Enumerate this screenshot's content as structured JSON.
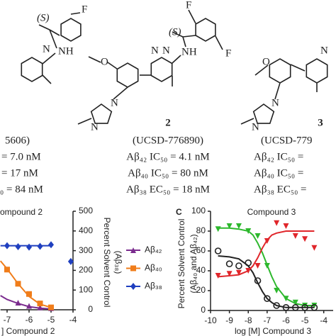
{
  "left_compound": {
    "labels": [
      "F",
      "(S)",
      "NH",
      "N"
    ],
    "code": "5606)",
    "lines": [
      "= 7.0 nM",
      "= 17 nM",
      "₀ = 84 nM"
    ]
  },
  "middle_compound": {
    "labels": [
      "F",
      "F",
      "(S)",
      "NH",
      "N",
      "N",
      "O",
      "N",
      "N"
    ],
    "number": "2",
    "code": "(UCSD-776890)",
    "lines": [
      "Aβ₄₂ IC₅₀ = 4.1 nM",
      "Aβ₄₀ IC₅₀ = 80 nM",
      "Aβ₃₈ EC₅₀ = 18 nM"
    ]
  },
  "right_compound": {
    "labels": [
      "N",
      "O",
      "N",
      "N"
    ],
    "number": "3",
    "code": "(UCSD-779",
    "lines": [
      "Aβ₄₂ IC₅₀ =",
      "Aβ₄₀ IC₅₀ =",
      "Aβ₃₈ EC₅₀ ="
    ]
  },
  "chart_data": [
    {
      "type": "scatter",
      "title": "ompound 2",
      "xlabel": "] Compound 2",
      "y2label": [
        "Percent Solvent Control",
        "(Aβ₃₈)"
      ],
      "xlim": [
        -7.3,
        -4
      ],
      "xticks": [
        -7,
        -6,
        -5,
        -4
      ],
      "ylim": [
        0,
        125
      ],
      "y2lim": [
        0,
        500
      ],
      "y2ticks": [
        0,
        100,
        200,
        300,
        400,
        500
      ],
      "legend": "outside-right",
      "series": [
        {
          "name": "Aβ₄₂",
          "color": "#7b2c8e",
          "marker": "triangle",
          "x": [
            -6.5,
            -6,
            -5.5,
            -5
          ],
          "values": [
            9,
            5,
            3,
            2
          ],
          "fit_x": [
            -7.3,
            -7,
            -6.5,
            -6,
            -5.5,
            -5
          ],
          "fit": [
            18,
            13,
            8,
            4,
            2,
            1
          ]
        },
        {
          "name": "Aβ₄₀",
          "color": "#f07d1a",
          "marker": "square",
          "x": [
            -7,
            -6.5,
            -6,
            -5.5,
            -5
          ],
          "values": [
            51,
            33,
            20,
            8,
            3
          ],
          "fit_x": [
            -7.3,
            -7,
            -6.5,
            -6,
            -5.5,
            -5
          ],
          "fit": [
            62,
            52,
            33,
            17,
            7,
            3
          ]
        },
        {
          "name": "Aβ₃₈",
          "color": "#1f3fbf",
          "marker": "diamond",
          "axis": "y2",
          "x": [
            -7,
            -6.5,
            -6,
            -5.5,
            -5,
            -4.1
          ],
          "values": [
            325,
            320,
            318,
            322,
            330,
            245
          ],
          "fit_x": [
            -7.3,
            -5
          ],
          "fit": [
            325,
            325
          ]
        }
      ]
    },
    {
      "type": "scatter",
      "panel": "C",
      "title": "Compound 3",
      "xlabel": "log [M] Compound 3",
      "ylabel": [
        "Percent Solvent Control",
        "(Aβ₄₀ and Aβ₄₂)"
      ],
      "xlim": [
        -10,
        -3.5
      ],
      "xticks": [
        -10,
        -9,
        -8,
        -7,
        -6,
        -5,
        -4
      ],
      "ylim": [
        0,
        100
      ],
      "yticks": [
        0,
        20,
        40,
        60,
        80,
        100
      ],
      "series": [
        {
          "color": "#2db82d",
          "marker": "triangle-down",
          "x": [
            -9.6,
            -9,
            -8.5,
            -8,
            -7.5,
            -7,
            -6.5,
            -6,
            -5.5,
            -5,
            -4.5
          ],
          "values": [
            82,
            85,
            85,
            80,
            75,
            45,
            20,
            12,
            8,
            5,
            5
          ],
          "fit_x": [
            -9.6,
            -9,
            -8.5,
            -8,
            -7.75,
            -7.5,
            -7.25,
            -7,
            -6.75,
            -6.5,
            -6,
            -5.5,
            -5,
            -4.5
          ],
          "fit": [
            83,
            83,
            82,
            80,
            76,
            68,
            58,
            46,
            34,
            24,
            12,
            7,
            5,
            5
          ]
        },
        {
          "color": "#222222",
          "marker": "circle",
          "x": [
            -9.6,
            -9,
            -8.5,
            -8,
            -7.5,
            -7,
            -6.5,
            -6,
            -5.5,
            -5,
            -4.5
          ],
          "values": [
            60,
            47,
            45,
            48,
            30,
            12,
            5,
            3,
            3,
            3,
            3
          ],
          "fit_x": [
            -9.6,
            -9,
            -8.5,
            -8,
            -7.75,
            -7.5,
            -7.25,
            -7,
            -6.75,
            -6.5,
            -6,
            -5.5,
            -5,
            -4.5
          ],
          "fit": [
            55,
            54,
            52,
            45,
            38,
            28,
            19,
            12,
            8,
            5,
            3,
            3,
            3,
            3
          ]
        },
        {
          "color": "#e0262b",
          "marker": "triangle-down",
          "x": [
            -9.6,
            -9,
            -8.5,
            -8,
            -7.5,
            -7,
            -6.5,
            -6,
            -5.5,
            -5,
            -4.5
          ],
          "values": [
            35,
            37,
            38,
            40,
            45,
            70,
            88,
            85,
            75,
            72,
            63
          ],
          "fit_x": [
            -9.6,
            -9,
            -8.5,
            -8,
            -7.75,
            -7.5,
            -7.25,
            -7,
            -6.75,
            -6.5,
            -6,
            -5.5,
            -5,
            -4.5
          ],
          "fit": [
            34,
            35,
            36,
            40,
            45,
            53,
            63,
            71,
            76,
            78,
            80,
            80,
            80,
            80
          ]
        }
      ]
    }
  ]
}
